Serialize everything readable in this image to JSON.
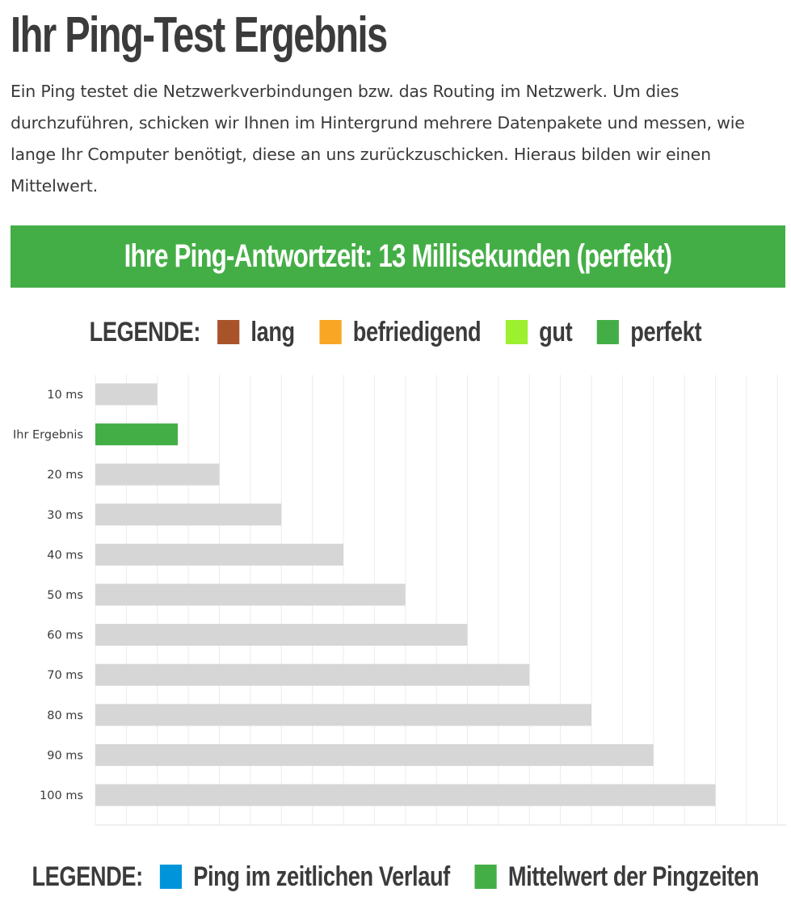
{
  "page": {
    "title": "Ihr Ping-Test Ergebnis",
    "intro": "Ein Ping testet die Netzwerkverbindungen bzw. das Routing im Netzwerk. Um dies durchzuführen, schicken wir Ihnen im Hintergrund mehrere Datenpakete und messen, wie lange Ihr Computer benötigt, diese an uns zurückzuschicken. Hieraus bilden wir einen Mittelwert."
  },
  "result": {
    "text": "Ihre Ping-Antwortzeit: 13 Millisekunden (perfekt)",
    "color": "#44ae46"
  },
  "legend_top": {
    "title": "LEGENDE:",
    "items": [
      {
        "label": "lang",
        "color": "#a9532a"
      },
      {
        "label": "befriedigend",
        "color": "#f9a624"
      },
      {
        "label": "gut",
        "color": "#9cf02f"
      },
      {
        "label": "perfekt",
        "color": "#44ae46"
      }
    ]
  },
  "legend_bottom": {
    "title": "LEGENDE:",
    "items": [
      {
        "label": "Ping im zeitlichen Verlauf",
        "color": "#0095da"
      },
      {
        "label": "Mittelwert der Pingzeiten",
        "color": "#44ae46"
      }
    ]
  },
  "chart_data": {
    "type": "bar",
    "orientation": "horizontal",
    "categories": [
      "10 ms",
      "Ihr Ergebnis",
      "20 ms",
      "30 ms",
      "40 ms",
      "50 ms",
      "60 ms",
      "70 ms",
      "80 ms",
      "90 ms",
      "100 ms"
    ],
    "values": [
      10,
      13.3,
      20,
      30,
      40,
      50,
      60,
      70,
      80,
      90,
      100
    ],
    "colors": [
      "#d6d6d6",
      "#44ae46",
      "#d6d6d6",
      "#d6d6d6",
      "#d6d6d6",
      "#d6d6d6",
      "#d6d6d6",
      "#d6d6d6",
      "#d6d6d6",
      "#d6d6d6",
      "#d6d6d6"
    ],
    "xlim": [
      0,
      111.4
    ],
    "grid": true,
    "grid_color": "#ececec"
  }
}
